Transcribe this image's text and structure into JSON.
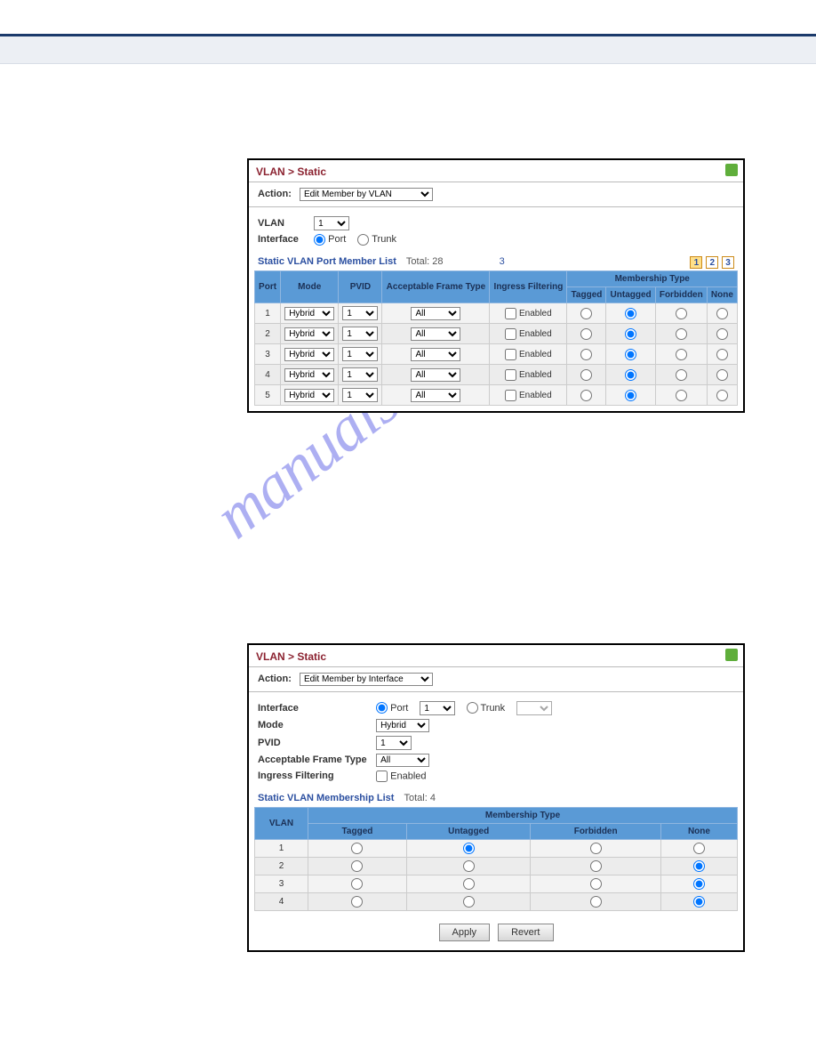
{
  "watermark": "manualshive.com",
  "panel1": {
    "breadcrumb": "VLAN > Static",
    "action_label": "Action:",
    "action_value": "Edit Member by VLAN",
    "vlan_label": "VLAN",
    "vlan_value": "1",
    "interface_label": "Interface",
    "interface_port": "Port",
    "interface_trunk": "Trunk",
    "list_title": "Static VLAN Port Member List",
    "total_label": "Total: 28",
    "page_extra": "3",
    "pages": [
      "1",
      "2",
      "3"
    ],
    "headers": {
      "port": "Port",
      "mode": "Mode",
      "pvid": "PVID",
      "aft": "Acceptable Frame Type",
      "if": "Ingress Filtering",
      "mt": "Membership Type",
      "tagged": "Tagged",
      "untagged": "Untagged",
      "forbidden": "Forbidden",
      "none": "None"
    },
    "rows": [
      {
        "port": "1",
        "mode": "Hybrid",
        "pvid": "1",
        "aft": "All",
        "if_label": "Enabled",
        "sel": "untagged"
      },
      {
        "port": "2",
        "mode": "Hybrid",
        "pvid": "1",
        "aft": "All",
        "if_label": "Enabled",
        "sel": "untagged"
      },
      {
        "port": "3",
        "mode": "Hybrid",
        "pvid": "1",
        "aft": "All",
        "if_label": "Enabled",
        "sel": "untagged"
      },
      {
        "port": "4",
        "mode": "Hybrid",
        "pvid": "1",
        "aft": "All",
        "if_label": "Enabled",
        "sel": "untagged"
      },
      {
        "port": "5",
        "mode": "Hybrid",
        "pvid": "1",
        "aft": "All",
        "if_label": "Enabled",
        "sel": "untagged"
      }
    ]
  },
  "panel2": {
    "breadcrumb": "VLAN > Static",
    "action_label": "Action:",
    "action_value": "Edit Member by Interface",
    "interface_label": "Interface",
    "port_label": "Port",
    "port_value": "1",
    "trunk_label": "Trunk",
    "mode_label": "Mode",
    "mode_value": "Hybrid",
    "pvid_label": "PVID",
    "pvid_value": "1",
    "aft_label": "Acceptable Frame Type",
    "aft_value": "All",
    "if_label": "Ingress Filtering",
    "if_check": "Enabled",
    "list_title": "Static VLAN Membership List",
    "total_label": "Total: 4",
    "headers": {
      "vlan": "VLAN",
      "mt": "Membership Type",
      "tagged": "Tagged",
      "untagged": "Untagged",
      "forbidden": "Forbidden",
      "none": "None"
    },
    "rows": [
      {
        "vlan": "1",
        "sel": "untagged"
      },
      {
        "vlan": "2",
        "sel": "none"
      },
      {
        "vlan": "3",
        "sel": "none"
      },
      {
        "vlan": "4",
        "sel": "none"
      }
    ],
    "apply": "Apply",
    "revert": "Revert"
  },
  "colors": {
    "header_blue": "#5a9ad6",
    "border_blue": "#8fb6e0",
    "title_red": "#8b2230",
    "link_blue": "#2b4fa0",
    "topbar_border": "#1b3a6b",
    "help_green": "#5fae3b"
  }
}
